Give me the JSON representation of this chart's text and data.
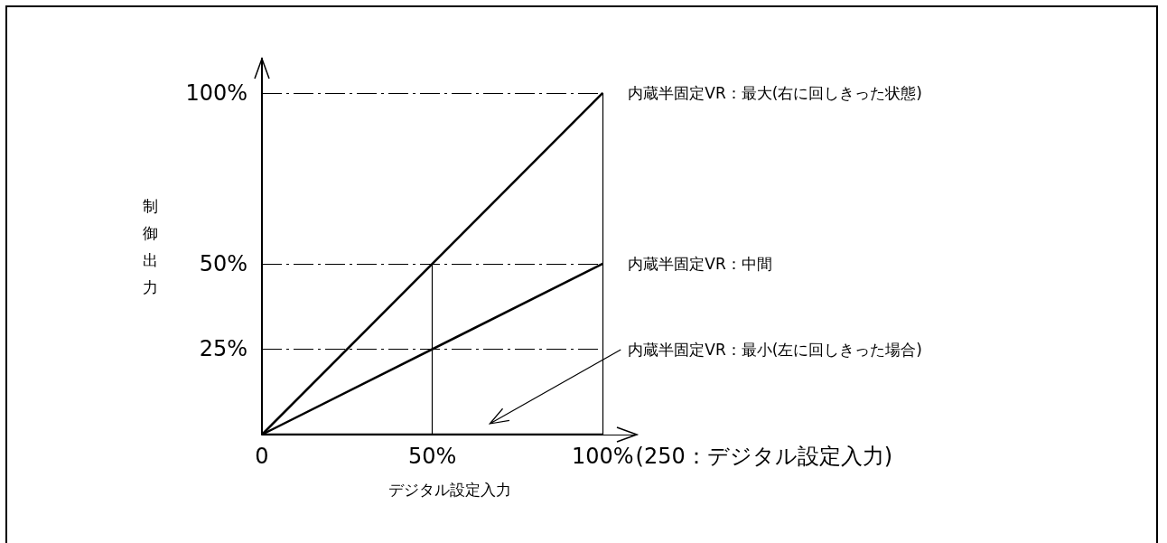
{
  "chart_data": {
    "type": "line",
    "xlabel": "デジタル設定入力",
    "ylabel": "制御出力",
    "x": [
      0,
      100
    ],
    "series": [
      {
        "name": "内蔵半固定VR：最大(右に回しきった状態)",
        "color": "#000000",
        "values": [
          0,
          100
        ]
      },
      {
        "name": "内蔵半固定VR：中間",
        "color": "#000000",
        "values": [
          0,
          50
        ]
      },
      {
        "name": "内蔵半固定VR：最小(左に回しきった場合)",
        "color": "#000000",
        "values": [
          0,
          0
        ]
      }
    ],
    "xlim": [
      0,
      110
    ],
    "xticks": [
      0,
      {
        "value": 50,
        "label": "50%"
      },
      {
        "value": 100,
        "label": "100%"
      }
    ],
    "annotations": [
      "(250：デジタル設定入力)"
    ],
    "ylim": [
      0,
      110
    ],
    "yticks": [
      {
        "value": 25,
        "label": "25%"
      },
      {
        "value": 50,
        "label": "50%"
      },
      {
        "value": 100,
        "label": "100%"
      }
    ],
    "ref_lines": [
      {
        "axis": "y",
        "value": 25,
        "line_style": "dashed",
        "color": "#000000"
      },
      {
        "axis": "y",
        "value": 50,
        "line_style": "dashed",
        "color": "#000000"
      },
      {
        "axis": "y",
        "value": 100,
        "line_style": "dashed",
        "color": "#000000"
      },
      {
        "axis": "x",
        "value": 50,
        "line_style": "solid",
        "color": "#000000"
      },
      {
        "axis": "x",
        "value": 100,
        "line_style": "solid",
        "color": "#000000"
      }
    ],
    "grid": false,
    "legend": false,
    "marker": "none",
    "line_style": "solid"
  }
}
